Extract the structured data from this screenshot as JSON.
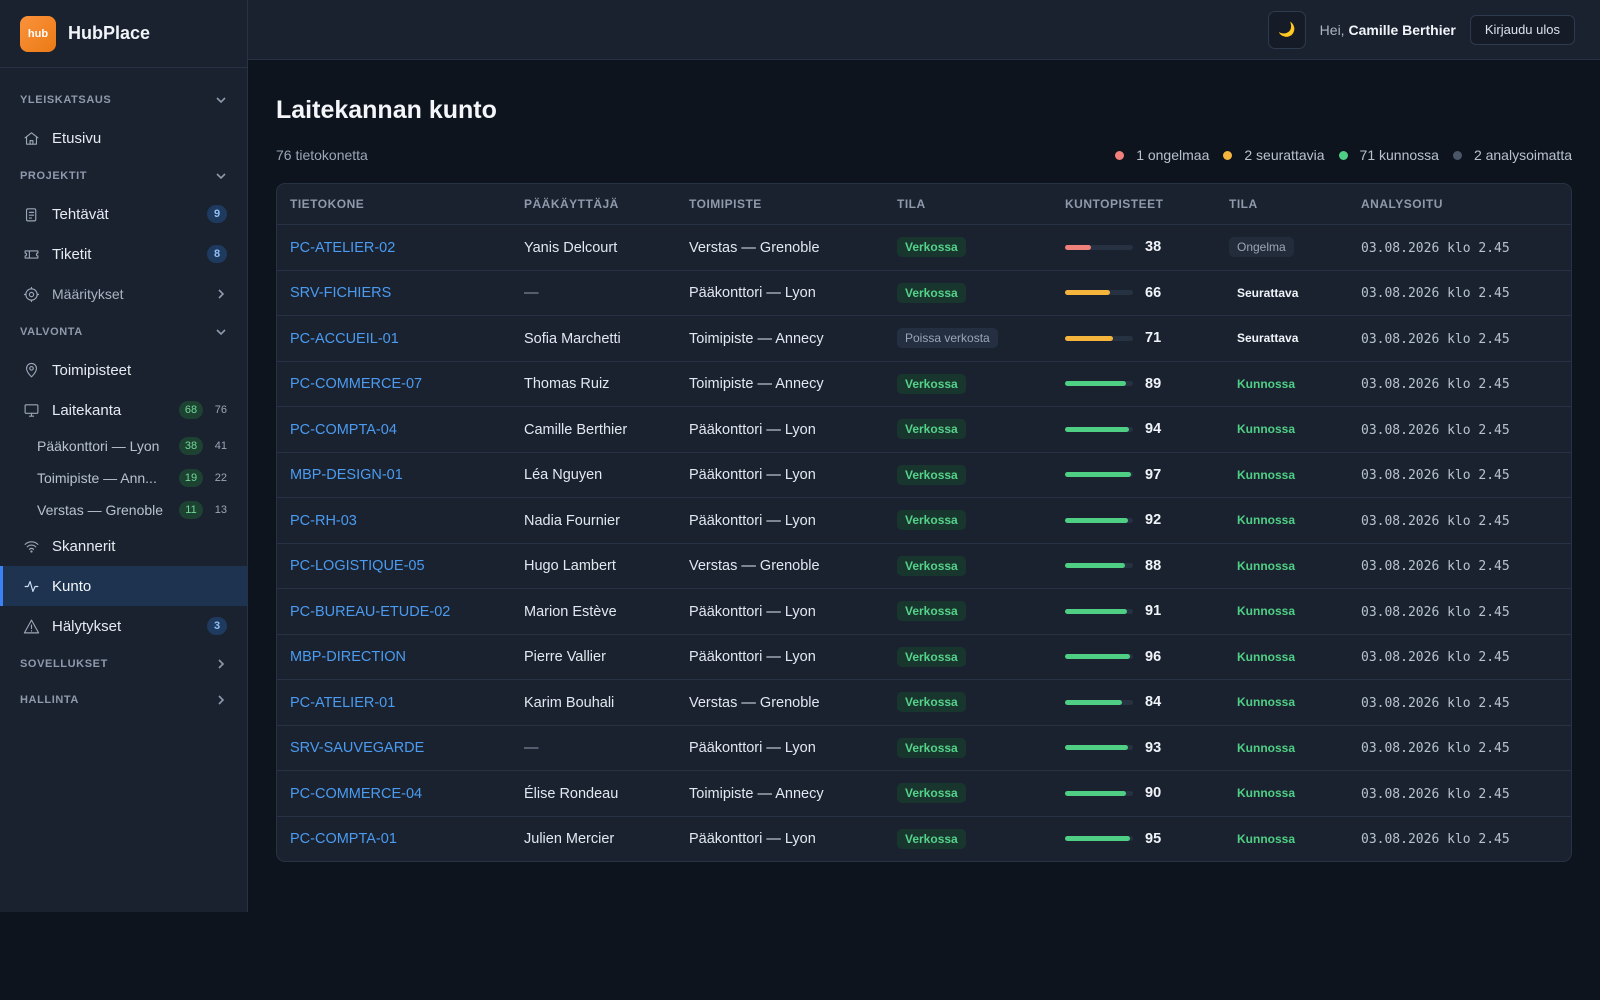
{
  "brand": {
    "logo_text": "hub",
    "name": "HubPlace"
  },
  "header": {
    "theme_icon": "🌙",
    "greeting_prefix": "Hei,",
    "user_name": "Camille Berthier",
    "logout_label": "Kirjaudu ulos"
  },
  "sidebar": {
    "section_overview": "YLEISKATSAUS",
    "home": "Etusivu",
    "section_projects": "PROJEKTIT",
    "tasks": {
      "label": "Tehtävät",
      "count": "9"
    },
    "tickets": {
      "label": "Tiketit",
      "count": "8"
    },
    "settings": "Määritykset",
    "section_monitoring": "VALVONTA",
    "sites": "Toimipisteet",
    "fleet": {
      "label": "Laitekanta",
      "ok": "68",
      "total": "76"
    },
    "fleet_subs": [
      {
        "label": "Pääkonttori — Lyon",
        "ok": "38",
        "total": "41"
      },
      {
        "label": "Toimipiste — Ann...",
        "ok": "19",
        "total": "22"
      },
      {
        "label": "Verstas — Grenoble",
        "ok": "11",
        "total": "13"
      }
    ],
    "scanners": "Skannerit",
    "health": "Kunto",
    "alerts": {
      "label": "Hälytykset",
      "count": "3"
    },
    "section_apps": "SOVELLUKSET",
    "section_admin": "HALLINTA"
  },
  "main": {
    "title": "Laitekannan kunto",
    "count": "76 tietokonetta",
    "legend": [
      {
        "label": "1 ongelmaa",
        "color": "#f0807a"
      },
      {
        "label": "2 seurattavia",
        "color": "#f5b43c"
      },
      {
        "label": "71 kunnossa",
        "color": "#4fcf84"
      },
      {
        "label": "2 analysoimatta",
        "color": "#4a5568"
      }
    ],
    "columns": [
      "TIETOKONE",
      "PÄÄKÄYTTÄJÄ",
      "TOIMIPISTE",
      "TILA",
      "KUNTOPISTEET",
      "TILA",
      "ANALYSOITU"
    ],
    "rows": [
      {
        "host": "PC-ATELIER-02",
        "user": "Yanis Delcourt",
        "site": "Verstas — Grenoble",
        "status": "Verkossa",
        "online": true,
        "score": 38,
        "health": "Ongelma",
        "level": "bad",
        "date": "03.08.2026 klo 2.45"
      },
      {
        "host": "SRV-FICHIERS",
        "user": "—",
        "site": "Pääkonttori — Lyon",
        "status": "Verkossa",
        "online": true,
        "score": 66,
        "health": "Seurattava",
        "level": "warn",
        "date": "03.08.2026 klo 2.45"
      },
      {
        "host": "PC-ACCUEIL-01",
        "user": "Sofia Marchetti",
        "site": "Toimipiste — Annecy",
        "status": "Poissa verkosta",
        "online": false,
        "score": 71,
        "health": "Seurattava",
        "level": "warn",
        "date": "03.08.2026 klo 2.45"
      },
      {
        "host": "PC-COMMERCE-07",
        "user": "Thomas Ruiz",
        "site": "Toimipiste — Annecy",
        "status": "Verkossa",
        "online": true,
        "score": 89,
        "health": "Kunnossa",
        "level": "ok",
        "date": "03.08.2026 klo 2.45"
      },
      {
        "host": "PC-COMPTA-04",
        "user": "Camille Berthier",
        "site": "Pääkonttori — Lyon",
        "status": "Verkossa",
        "online": true,
        "score": 94,
        "health": "Kunnossa",
        "level": "ok",
        "date": "03.08.2026 klo 2.45"
      },
      {
        "host": "MBP-DESIGN-01",
        "user": "Léa Nguyen",
        "site": "Pääkonttori — Lyon",
        "status": "Verkossa",
        "online": true,
        "score": 97,
        "health": "Kunnossa",
        "level": "ok",
        "date": "03.08.2026 klo 2.45"
      },
      {
        "host": "PC-RH-03",
        "user": "Nadia Fournier",
        "site": "Pääkonttori — Lyon",
        "status": "Verkossa",
        "online": true,
        "score": 92,
        "health": "Kunnossa",
        "level": "ok",
        "date": "03.08.2026 klo 2.45"
      },
      {
        "host": "PC-LOGISTIQUE-05",
        "user": "Hugo Lambert",
        "site": "Verstas — Grenoble",
        "status": "Verkossa",
        "online": true,
        "score": 88,
        "health": "Kunnossa",
        "level": "ok",
        "date": "03.08.2026 klo 2.45"
      },
      {
        "host": "PC-BUREAU-ETUDE-02",
        "user": "Marion Estève",
        "site": "Pääkonttori — Lyon",
        "status": "Verkossa",
        "online": true,
        "score": 91,
        "health": "Kunnossa",
        "level": "ok",
        "date": "03.08.2026 klo 2.45"
      },
      {
        "host": "MBP-DIRECTION",
        "user": "Pierre Vallier",
        "site": "Pääkonttori — Lyon",
        "status": "Verkossa",
        "online": true,
        "score": 96,
        "health": "Kunnossa",
        "level": "ok",
        "date": "03.08.2026 klo 2.45"
      },
      {
        "host": "PC-ATELIER-01",
        "user": "Karim Bouhali",
        "site": "Verstas — Grenoble",
        "status": "Verkossa",
        "online": true,
        "score": 84,
        "health": "Kunnossa",
        "level": "ok",
        "date": "03.08.2026 klo 2.45"
      },
      {
        "host": "SRV-SAUVEGARDE",
        "user": "—",
        "site": "Pääkonttori — Lyon",
        "status": "Verkossa",
        "online": true,
        "score": 93,
        "health": "Kunnossa",
        "level": "ok",
        "date": "03.08.2026 klo 2.45"
      },
      {
        "host": "PC-COMMERCE-04",
        "user": "Élise Rondeau",
        "site": "Toimipiste — Annecy",
        "status": "Verkossa",
        "online": true,
        "score": 90,
        "health": "Kunnossa",
        "level": "ok",
        "date": "03.08.2026 klo 2.45"
      },
      {
        "host": "PC-COMPTA-01",
        "user": "Julien Mercier",
        "site": "Pääkonttori — Lyon",
        "status": "Verkossa",
        "online": true,
        "score": 95,
        "health": "Kunnossa",
        "level": "ok",
        "date": "03.08.2026 klo 2.45"
      }
    ]
  },
  "colors": {
    "bad": "#f0807a",
    "warn": "#f5b43c",
    "ok": "#4fcf84",
    "accent": "#3b82f6",
    "link": "#4b9bf0"
  }
}
